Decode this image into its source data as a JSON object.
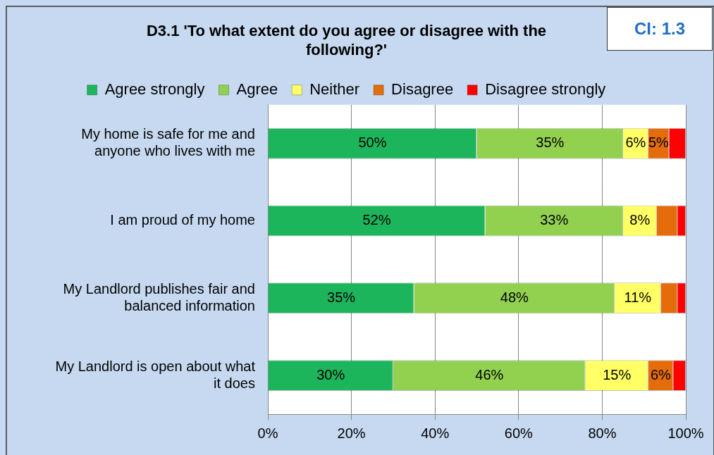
{
  "chart_data": {
    "type": "bar",
    "orientation": "horizontal",
    "stacked": true,
    "title": "D3.1 'To what extent do you agree or disagree with the following?'",
    "annotations": [
      "CI: 1.3"
    ],
    "categories": [
      "My home is safe for me and anyone who lives with me",
      "I am proud of my home",
      "My Landlord publishes fair and balanced information",
      "My Landlord is open about what it does"
    ],
    "series": [
      {
        "name": "Agree strongly",
        "color": "#1db55c",
        "values": [
          50,
          52,
          35,
          30
        ],
        "value_labels": [
          "50%",
          "52%",
          "35%",
          "30%"
        ]
      },
      {
        "name": "Agree",
        "color": "#92d050",
        "values": [
          35,
          33,
          48,
          46
        ],
        "value_labels": [
          "35%",
          "33%",
          "48%",
          "46%"
        ]
      },
      {
        "name": "Neither",
        "color": "#ffff66",
        "values": [
          6,
          8,
          11,
          15
        ],
        "value_labels": [
          "6%",
          "8%",
          "11%",
          "15%"
        ]
      },
      {
        "name": "Disagree",
        "color": "#e46c0a",
        "values": [
          5,
          5,
          4,
          6
        ],
        "value_labels": [
          "5%",
          null,
          null,
          "6%"
        ]
      },
      {
        "name": "Disagree strongly",
        "color": "#ff0000",
        "values": [
          4,
          2,
          2,
          3
        ],
        "value_labels": [
          null,
          null,
          null,
          null
        ]
      }
    ],
    "xlim": [
      0,
      100
    ],
    "xticks": [
      {
        "value": 0,
        "label": "0%"
      },
      {
        "value": 20,
        "label": "20%"
      },
      {
        "value": 40,
        "label": "40%"
      },
      {
        "value": 60,
        "label": "60%"
      },
      {
        "value": 80,
        "label": "80%"
      },
      {
        "value": 100,
        "label": "100%"
      }
    ],
    "grid": "x",
    "legend": "top"
  }
}
